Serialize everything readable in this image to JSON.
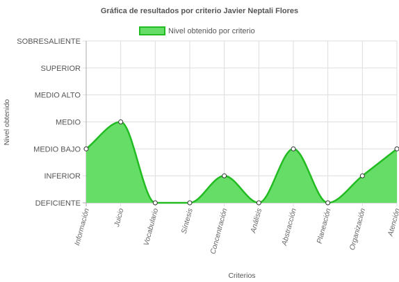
{
  "colors": {
    "fill": "#66dd66",
    "line": "#22bb22",
    "grid": "#dddddd",
    "axis": "#aaaaaa",
    "point_fill": "#ffffff",
    "point_stroke": "#333333"
  },
  "chart_data": {
    "type": "area",
    "title": "Gráfica de resultados por criterio Javier Neptali Flores",
    "xlabel": "Criterios",
    "ylabel": "Nivel obtenido",
    "categories": [
      "Información",
      "Juicio",
      "Vocabulario",
      "Síntesis",
      "Concentración",
      "Análisis",
      "Abstracción",
      "Planeación",
      "Organización",
      "Atención"
    ],
    "y_levels": [
      "DEFICIENTE",
      "INFERIOR",
      "MEDIO BAJO",
      "MEDIO",
      "MEDIO ALTO",
      "SUPERIOR",
      "SOBRESALIENTE"
    ],
    "series": [
      {
        "name": "Nivel obtenido por criterio",
        "values": [
          2,
          3,
          0,
          0,
          1,
          0,
          2,
          0,
          1,
          2
        ]
      }
    ],
    "ylim": [
      0,
      6
    ],
    "grid": true,
    "legend_position": "top"
  }
}
